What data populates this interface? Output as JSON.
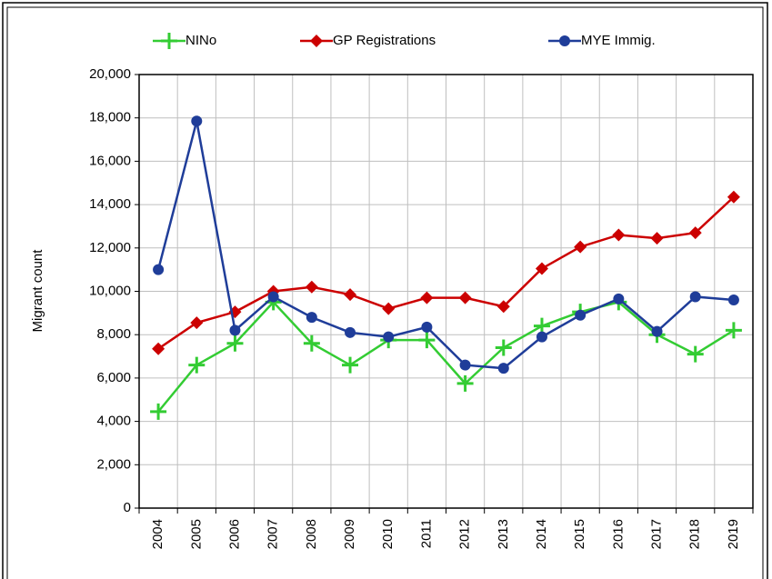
{
  "chart_data": {
    "type": "line",
    "y_label": "Migrant count",
    "categories": [
      "2004",
      "2005",
      "2006",
      "2007",
      "2008",
      "2009",
      "2010",
      "2011",
      "2012",
      "2013",
      "2014",
      "2015",
      "2016",
      "2017",
      "2018",
      "2019"
    ],
    "series": [
      {
        "name": "NINo",
        "color": "#33cc33",
        "marker": "plus",
        "values": [
          4450,
          6600,
          7600,
          9500,
          7600,
          6600,
          7750,
          7750,
          5750,
          7400,
          8400,
          9050,
          9500,
          8000,
          7100,
          8200
        ]
      },
      {
        "name": "GP Registrations",
        "color": "#cc0000",
        "marker": "diamond",
        "values": [
          7350,
          8550,
          9050,
          10000,
          10200,
          9850,
          9200,
          9700,
          9700,
          9300,
          11050,
          12050,
          12600,
          12450,
          12700,
          14350
        ]
      },
      {
        "name": "MYE Immig.",
        "color": "#1f3d99",
        "marker": "circle",
        "values": [
          11000,
          17850,
          8200,
          9750,
          8800,
          8100,
          7900,
          8350,
          6600,
          6450,
          7900,
          8900,
          9650,
          8150,
          9750,
          9600
        ]
      }
    ],
    "ylim": [
      0,
      20000
    ],
    "yticks": [
      0,
      {
        "value": 2000,
        "label": "2,000"
      },
      {
        "value": 4000,
        "label": "4,000"
      },
      {
        "value": 6000,
        "label": "6,000"
      },
      {
        "value": 8000,
        "label": "8,000"
      },
      {
        "value": 10000,
        "label": "10,000"
      },
      {
        "value": 12000,
        "label": "12,000"
      },
      {
        "value": 14000,
        "label": "14,000"
      },
      {
        "value": 16000,
        "label": "16,000"
      },
      {
        "value": 18000,
        "label": "18,000"
      },
      {
        "value": 20000,
        "label": "20,000"
      }
    ],
    "grid": true,
    "legend": "top"
  }
}
